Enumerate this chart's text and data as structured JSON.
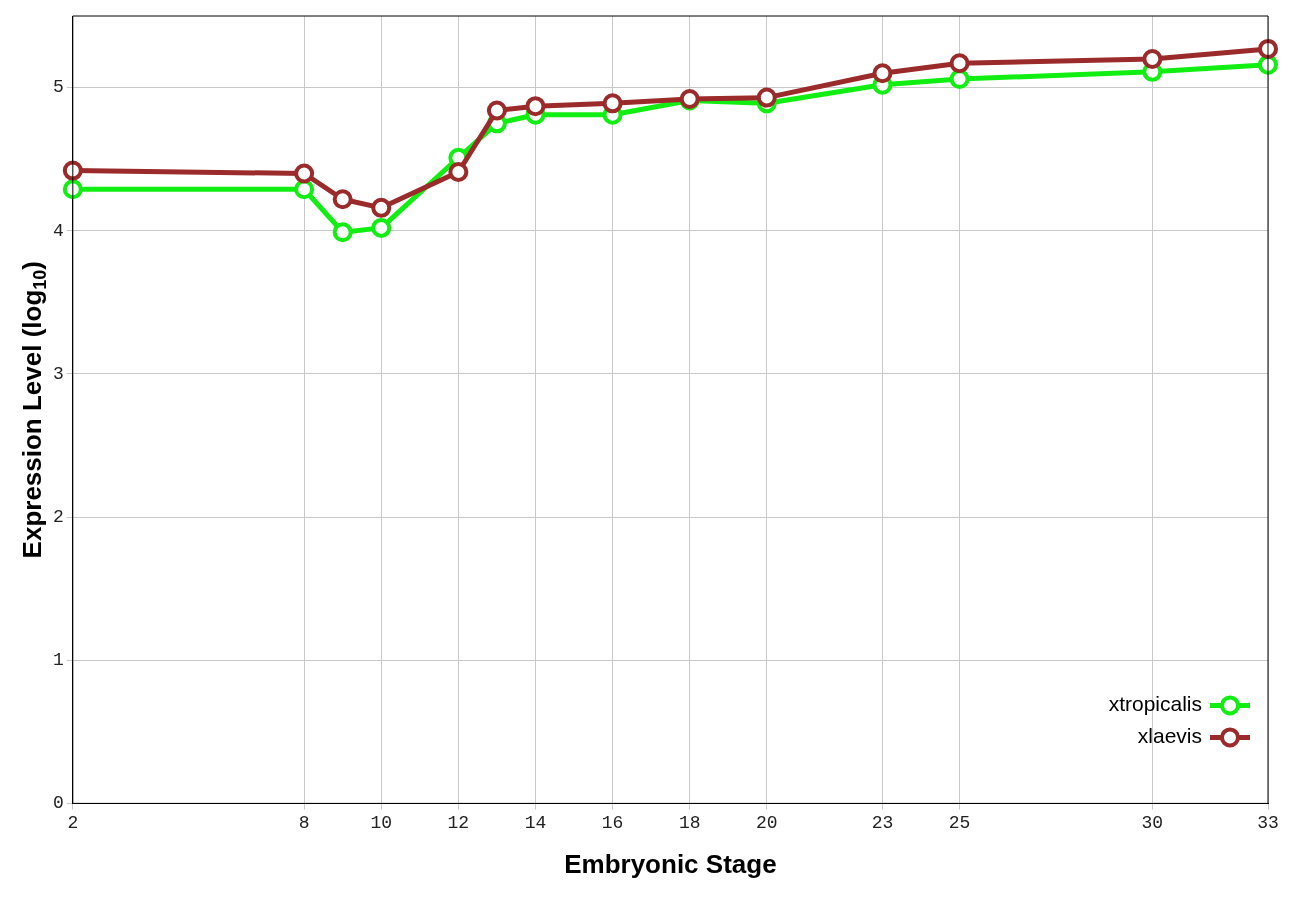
{
  "chart_data": {
    "type": "line",
    "xlabel": "Embryonic Stage",
    "ylabel": "Expression Level (log$_{10}$)",
    "x": [
      2,
      8,
      9,
      10,
      12,
      13,
      14,
      16,
      18,
      20,
      23,
      25,
      30,
      33
    ],
    "xlim": [
      2,
      33
    ],
    "xticks": [
      2,
      8,
      10,
      12,
      14,
      16,
      18,
      20,
      23,
      25,
      30,
      33
    ],
    "ylim": [
      0,
      5.5
    ],
    "yticks": [
      0,
      1,
      2,
      3,
      4,
      5
    ],
    "grid": true,
    "legend": "bottom right",
    "marker": "circle",
    "line_style": "solid",
    "series": [
      {
        "name": "xtropicalis",
        "color": "#11ee11",
        "values": [
          4.29,
          4.29,
          3.99,
          4.02,
          4.51,
          4.75,
          4.81,
          4.81,
          4.91,
          4.89,
          5.02,
          5.06,
          5.11,
          5.16
        ]
      },
      {
        "name": "xlaevis",
        "color": "#9b2a2a",
        "values": [
          4.42,
          4.4,
          4.22,
          4.16,
          4.41,
          4.84,
          4.87,
          4.89,
          4.92,
          4.93,
          5.1,
          5.17,
          5.2,
          5.27
        ]
      }
    ]
  }
}
